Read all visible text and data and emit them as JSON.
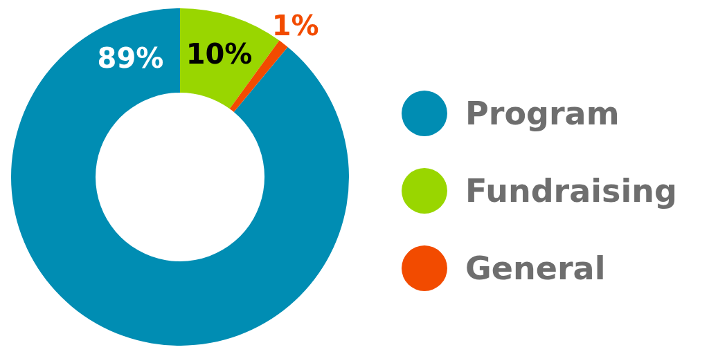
{
  "chart_data": {
    "type": "donut",
    "categories": [
      "Program",
      "Fundraising",
      "General"
    ],
    "values": [
      89,
      10,
      1
    ],
    "value_labels": [
      "89%",
      "10%",
      "1%"
    ],
    "colors": [
      "#008db3",
      "#99d600",
      "#f24b00"
    ],
    "legend": "right"
  }
}
